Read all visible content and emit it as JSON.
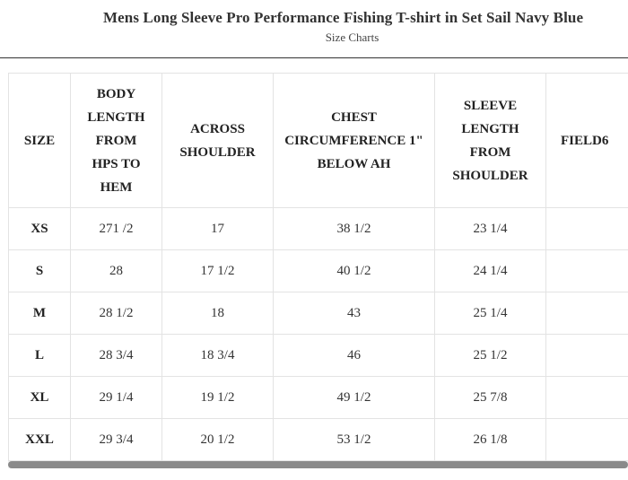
{
  "page": {
    "title": "Mens Long Sleeve Pro Performance Fishing T-shirt in Set Sail Navy Blue",
    "subtitle": "Size Charts"
  },
  "table": {
    "headers": [
      "SIZE",
      "BODY LENGTH FROM HPS TO HEM",
      "ACROSS SHOULDER",
      "CHEST CIRCUMFERENCE 1\" BELOW AH",
      "SLEEVE LENGTH FROM SHOULDER",
      "FIELD6"
    ],
    "rows": [
      [
        "XS",
        "271 /2",
        "17",
        "38 1/2",
        "23 1/4",
        ""
      ],
      [
        "S",
        "28",
        "17 1/2",
        "40 1/2",
        "24 1/4",
        ""
      ],
      [
        "M",
        "28 1/2",
        "18",
        "43",
        "25 1/4",
        ""
      ],
      [
        "L",
        "28 3/4",
        "18 3/4",
        "46",
        "25 1/2",
        ""
      ],
      [
        "XL",
        "29 1/4",
        "19 1/2",
        "49 1/2",
        "25 7/8",
        ""
      ],
      [
        "XXL",
        "29 3/4",
        "20 1/2",
        "53 1/2",
        "26 1/8",
        ""
      ]
    ]
  }
}
